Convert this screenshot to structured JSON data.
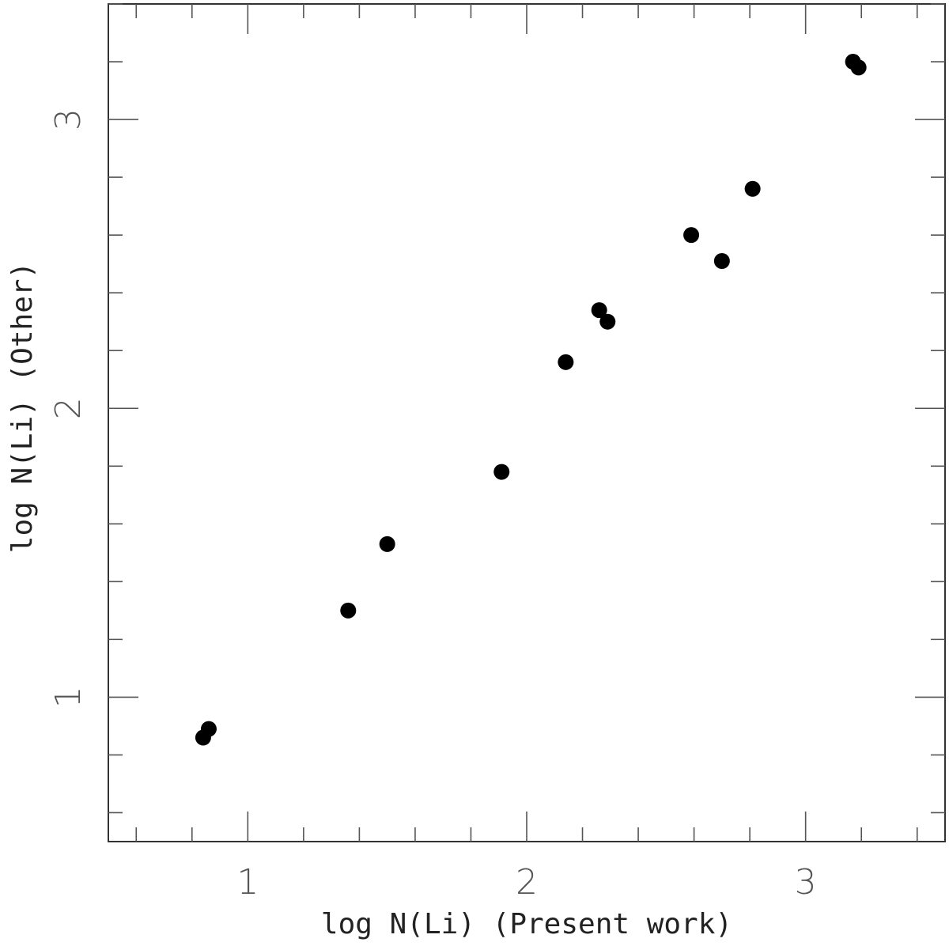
{
  "chart_data": {
    "type": "scatter",
    "xlabel": "log N(Li) (Present work)",
    "ylabel": "log N(Li) (Other)",
    "xlim": [
      0.5,
      3.5
    ],
    "ylim": [
      0.5,
      3.4
    ],
    "x_ticks": [
      1,
      2,
      3
    ],
    "y_ticks": [
      1,
      2,
      3
    ],
    "grid": false,
    "marker_color": "#000000",
    "series": [
      {
        "points": [
          {
            "x": 0.84,
            "y": 0.86
          },
          {
            "x": 0.86,
            "y": 0.89
          },
          {
            "x": 1.36,
            "y": 1.3
          },
          {
            "x": 1.5,
            "y": 1.53
          },
          {
            "x": 1.91,
            "y": 1.78
          },
          {
            "x": 2.14,
            "y": 2.16
          },
          {
            "x": 2.26,
            "y": 2.34
          },
          {
            "x": 2.29,
            "y": 2.3
          },
          {
            "x": 2.59,
            "y": 2.6
          },
          {
            "x": 2.7,
            "y": 2.51
          },
          {
            "x": 2.81,
            "y": 2.76
          },
          {
            "x": 3.17,
            "y": 3.2
          },
          {
            "x": 3.19,
            "y": 3.18
          }
        ]
      }
    ]
  }
}
